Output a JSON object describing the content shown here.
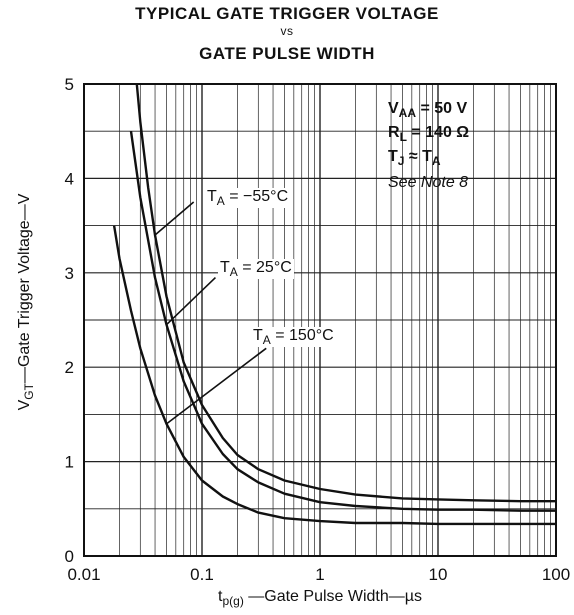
{
  "title": {
    "line1": "TYPICAL GATE TRIGGER VOLTAGE",
    "line2": "vs",
    "line3": "GATE PULSE WIDTH"
  },
  "axes": {
    "ylabel_main": "V",
    "ylabel_sub": "GT",
    "ylabel_rest": "—Gate Trigger Voltage—V",
    "xlabel_main": "t",
    "xlabel_sub": "p(g)",
    "xlabel_rest": " —Gate Pulse Width—µs"
  },
  "conditions": {
    "vaa_main": "V",
    "vaa_sub": "AA",
    "vaa_rest": " = 50 V",
    "rl_main": "R",
    "rl_sub": "L",
    "rl_rest": " = 140 Ω",
    "tj_main": "T",
    "tj_sub": "J",
    "tj_rest": " ≈ T",
    "tj_sub2": "A",
    "note": "See Note 8"
  },
  "curve_labels": [
    {
      "main": "T",
      "sub": "A",
      "rest": " = −55°C"
    },
    {
      "main": "T",
      "sub": "A",
      "rest": " = 25°C"
    },
    {
      "main": "T",
      "sub": "A",
      "rest": " = 150°C"
    }
  ],
  "chart_data": {
    "type": "line",
    "x_scale": "log",
    "y_scale": "linear",
    "xlim": [
      0.01,
      100
    ],
    "ylim": [
      0,
      5
    ],
    "x_ticks": [
      "0.01",
      "0.1",
      "1",
      "10",
      "100"
    ],
    "y_ticks": [
      "0",
      "1",
      "2",
      "3",
      "4",
      "5"
    ],
    "grid": true,
    "series": [
      {
        "name": "T_A = −55°C",
        "x": [
          0.028,
          0.03,
          0.035,
          0.04,
          0.05,
          0.07,
          0.1,
          0.15,
          0.2,
          0.3,
          0.5,
          1,
          2,
          5,
          10,
          20,
          50,
          100
        ],
        "y": [
          5.0,
          4.6,
          3.9,
          3.4,
          2.75,
          2.05,
          1.6,
          1.25,
          1.07,
          0.92,
          0.8,
          0.71,
          0.65,
          0.61,
          0.6,
          0.59,
          0.58,
          0.58
        ]
      },
      {
        "name": "T_A = 25°C",
        "x": [
          0.025,
          0.03,
          0.04,
          0.05,
          0.07,
          0.1,
          0.15,
          0.2,
          0.3,
          0.5,
          1,
          2,
          5,
          10,
          20,
          50,
          100
        ],
        "y": [
          4.5,
          3.8,
          2.95,
          2.45,
          1.85,
          1.4,
          1.08,
          0.92,
          0.78,
          0.66,
          0.57,
          0.53,
          0.5,
          0.49,
          0.49,
          0.48,
          0.48
        ]
      },
      {
        "name": "T_A = 150°C",
        "x": [
          0.018,
          0.02,
          0.025,
          0.03,
          0.04,
          0.05,
          0.07,
          0.1,
          0.15,
          0.2,
          0.3,
          0.5,
          1,
          2,
          5,
          10,
          20,
          50,
          100
        ],
        "y": [
          3.5,
          3.15,
          2.6,
          2.2,
          1.7,
          1.4,
          1.05,
          0.8,
          0.63,
          0.55,
          0.46,
          0.4,
          0.37,
          0.35,
          0.35,
          0.34,
          0.34,
          0.34,
          0.34
        ]
      }
    ]
  }
}
